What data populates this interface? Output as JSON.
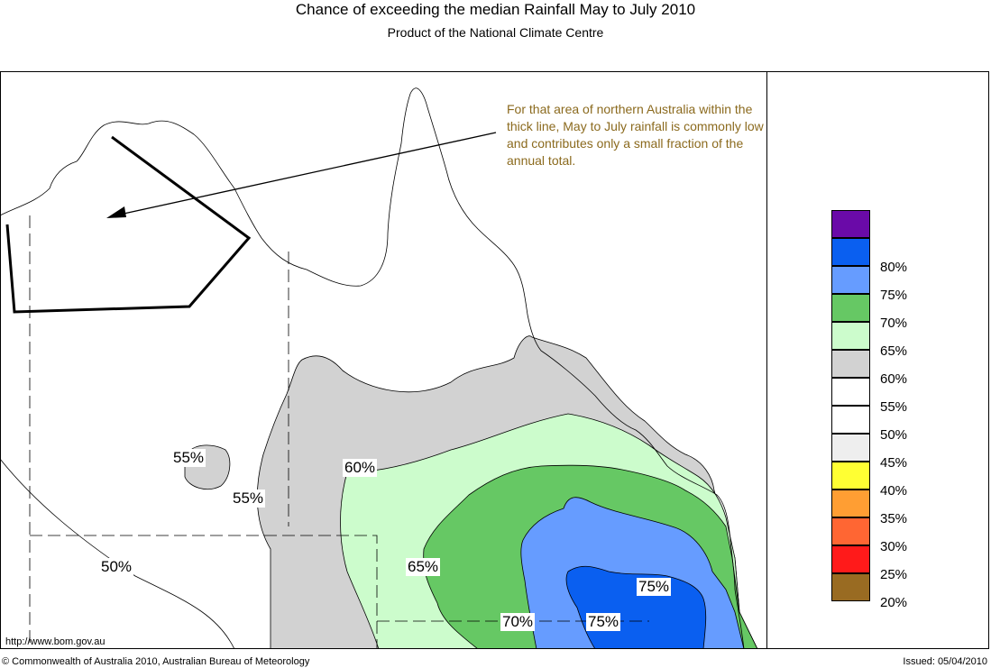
{
  "title": "Chance of exceeding the median Rainfall May to July 2010",
  "subtitle": "Product of the National Climate Centre",
  "note": "For that area of northern Australia within the thick line, May to July rainfall is commonly low and contributes only a small fraction of the annual total.",
  "contour_labels": [
    "55%",
    "55%",
    "60%",
    "50%",
    "65%",
    "75%",
    "70%",
    "75%"
  ],
  "legend": {
    "items": [
      {
        "label": "",
        "color": "#6a0aa8"
      },
      {
        "label": "80%",
        "color": "#0a5ff0"
      },
      {
        "label": "75%",
        "color": "#669cff"
      },
      {
        "label": "70%",
        "color": "#66c864"
      },
      {
        "label": "65%",
        "color": "#ccfccc"
      },
      {
        "label": "60%",
        "color": "#d2d2d2"
      },
      {
        "label": "55%",
        "color": "#ffffff"
      },
      {
        "label": "50%",
        "color": "#ffffff"
      },
      {
        "label": "45%",
        "color": "#eeeeee"
      },
      {
        "label": "40%",
        "color": "#ffff33"
      },
      {
        "label": "35%",
        "color": "#ff9e33"
      },
      {
        "label": "30%",
        "color": "#ff6633"
      },
      {
        "label": "25%",
        "color": "#ff1a1a"
      },
      {
        "label": "20%",
        "color": "#996b22"
      }
    ]
  },
  "footer": {
    "url": "http://www.bom.gov.au",
    "copyright": "© Commonwealth of Australia 2010, Australian Bureau of Meteorology",
    "issued": "Issued: 05/04/2010"
  }
}
